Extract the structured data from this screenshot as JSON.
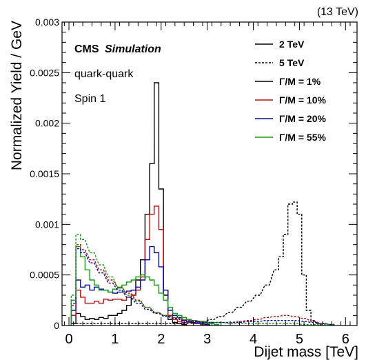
{
  "chart_data": {
    "type": "line",
    "top_right_label": "(13 TeV)",
    "xlabel": "Dijet mass [TeV]",
    "ylabel": "Normalized Yield / GeV",
    "xlim": [
      -0.15,
      6.25
    ],
    "ylim": [
      0,
      0.003
    ],
    "x_ticks": [
      0,
      1,
      2,
      3,
      4,
      5,
      6
    ],
    "x_tick_labels": [
      "0",
      "1",
      "2",
      "3",
      "4",
      "5",
      "6"
    ],
    "y_ticks": [
      0,
      0.0005,
      0.001,
      0.0015,
      0.002,
      0.0025,
      0.003
    ],
    "y_tick_labels": [
      "0",
      "0.0005",
      "0.001",
      "0.0015",
      "0.002",
      "0.0025",
      "0.003"
    ],
    "annotations": [
      "quark-quark",
      "Spin 1"
    ],
    "cms_label": "CMS",
    "cms_sublabel": "Simulation",
    "legend_placement": "top-right",
    "legend": [
      {
        "label": "2 TeV",
        "style": "solid",
        "color": "#000000"
      },
      {
        "label": "5 TeV",
        "style": "dotted",
        "color": "#000000"
      },
      {
        "label": "Γ/M = 1%",
        "style": "solid",
        "color": "#000000"
      },
      {
        "label": "Γ/M = 10%",
        "style": "solid",
        "color": "#dd0000"
      },
      {
        "label": "Γ/M = 20%",
        "style": "solid",
        "color": "#0000dd"
      },
      {
        "label": "Γ/M = 55%",
        "style": "solid",
        "color": "#00aa00"
      }
    ],
    "bin_width": 0.1,
    "series": [
      {
        "mass": "2 TeV",
        "width": "1%",
        "style": "solid",
        "color": "#000000",
        "x": [
          0.1,
          0.2,
          0.3,
          0.4,
          0.5,
          0.6,
          0.7,
          0.8,
          0.9,
          1.0,
          1.1,
          1.2,
          1.3,
          1.4,
          1.5,
          1.6,
          1.7,
          1.8,
          1.9,
          2.0,
          2.1,
          2.2,
          2.3,
          2.4,
          2.5
        ],
        "values": [
          2e-05,
          0.00012,
          9e-05,
          6e-05,
          7e-05,
          6e-05,
          8e-05,
          7e-05,
          0.0001,
          0.0001,
          0.00012,
          0.00015,
          0.0002,
          0.0003,
          0.00045,
          0.00065,
          0.0011,
          0.0016,
          0.0024,
          0.00135,
          0.0003,
          6e-05,
          3e-05,
          2e-05,
          1e-05
        ]
      },
      {
        "mass": "2 TeV",
        "width": "10%",
        "style": "solid",
        "color": "#dd0000",
        "x": [
          0.1,
          0.2,
          0.3,
          0.4,
          0.5,
          0.6,
          0.7,
          0.8,
          0.9,
          1.0,
          1.1,
          1.2,
          1.3,
          1.4,
          1.5,
          1.6,
          1.7,
          1.8,
          1.9,
          2.0,
          2.1,
          2.2,
          2.3,
          2.4,
          2.5,
          2.6,
          2.7,
          2.8,
          2.9,
          3.0
        ],
        "values": [
          0.0001,
          0.00035,
          0.00028,
          0.00022,
          0.00022,
          0.00024,
          0.00022,
          0.00026,
          0.00025,
          0.00026,
          0.00026,
          0.00025,
          0.00028,
          0.0003,
          0.00035,
          0.00048,
          0.00085,
          0.0011,
          0.00118,
          0.00095,
          0.00035,
          0.0001,
          6e-05,
          4e-05,
          3e-05,
          3e-05,
          2e-05,
          2e-05,
          1e-05,
          1e-05
        ]
      },
      {
        "mass": "2 TeV",
        "width": "20%",
        "style": "solid",
        "color": "#0000dd",
        "x": [
          0.1,
          0.2,
          0.3,
          0.4,
          0.5,
          0.6,
          0.7,
          0.8,
          0.9,
          1.0,
          1.1,
          1.2,
          1.3,
          1.4,
          1.5,
          1.6,
          1.7,
          1.8,
          1.9,
          2.0,
          2.1,
          2.2,
          2.3,
          2.4,
          2.5,
          2.6,
          2.7,
          2.8,
          2.9,
          3.0
        ],
        "values": [
          0.00015,
          0.00045,
          0.00038,
          0.0004,
          0.00035,
          0.00038,
          0.00036,
          0.00035,
          0.00033,
          0.00032,
          0.00033,
          0.00033,
          0.00034,
          0.00035,
          0.00038,
          0.00045,
          0.00065,
          0.00078,
          0.00072,
          0.00058,
          0.00035,
          0.00015,
          0.0001,
          8e-05,
          5e-05,
          4e-05,
          3e-05,
          2e-05,
          2e-05,
          1e-05
        ]
      },
      {
        "mass": "2 TeV",
        "width": "55%",
        "style": "solid",
        "color": "#00aa00",
        "x": [
          0.1,
          0.2,
          0.3,
          0.4,
          0.5,
          0.6,
          0.7,
          0.8,
          0.9,
          1.0,
          1.1,
          1.2,
          1.3,
          1.4,
          1.5,
          1.6,
          1.7,
          1.8,
          1.9,
          2.0,
          2.1,
          2.2,
          2.3,
          2.4,
          2.5,
          2.6,
          2.7,
          2.8,
          2.9,
          3.0,
          3.1,
          3.2
        ],
        "values": [
          0.00025,
          0.00078,
          0.00068,
          0.00055,
          0.00045,
          0.0004,
          0.00035,
          0.00035,
          0.00033,
          0.00036,
          0.00037,
          0.0004,
          0.00043,
          0.00045,
          0.00048,
          0.0005,
          0.00048,
          0.00045,
          0.0004,
          0.00032,
          0.00025,
          0.00018,
          0.00012,
          0.0001,
          8e-05,
          6e-05,
          5e-05,
          4e-05,
          3e-05,
          2e-05,
          2e-05,
          1e-05
        ]
      },
      {
        "mass": "5 TeV",
        "width": "1%",
        "style": "dotted",
        "color": "#000000",
        "x": [
          0.1,
          0.3,
          0.5,
          0.7,
          0.9,
          1.1,
          1.3,
          1.5,
          1.7,
          1.9,
          2.1,
          2.3,
          2.5,
          2.7,
          2.9,
          3.1,
          3.3,
          3.5,
          3.7,
          3.9,
          4.1,
          4.3,
          4.5,
          4.6,
          4.7,
          4.8,
          4.9,
          5.0,
          5.1,
          5.2,
          5.3,
          5.4
        ],
        "values": [
          2e-05,
          2e-05,
          2e-05,
          2e-05,
          2e-05,
          2e-05,
          2e-05,
          2e-05,
          2e-05,
          2e-05,
          2e-05,
          2e-05,
          2e-05,
          3e-05,
          4e-05,
          6e-05,
          9e-05,
          0.00013,
          0.00018,
          0.00024,
          0.0003,
          0.0004,
          0.00055,
          0.00068,
          0.0009,
          0.0012,
          0.00122,
          0.0011,
          0.0005,
          0.00015,
          5e-05,
          2e-05
        ]
      },
      {
        "mass": "5 TeV",
        "width": "10%",
        "style": "dotted",
        "color": "#dd0000",
        "x": [
          0.1,
          0.2,
          0.3,
          0.5,
          0.7,
          0.9,
          1.1,
          1.3,
          1.5,
          1.7,
          1.9,
          2.1,
          2.3,
          2.5,
          2.7,
          2.9,
          3.1,
          3.3,
          3.5,
          3.7,
          3.9,
          4.1,
          4.3,
          4.5,
          4.7,
          4.9,
          5.1,
          5.3,
          5.5,
          5.7
        ],
        "values": [
          0.0002,
          0.0008,
          0.00075,
          0.00065,
          0.00055,
          0.00045,
          0.00038,
          0.00032,
          0.00025,
          0.00018,
          0.00013,
          0.0001,
          8e-05,
          6e-05,
          5e-05,
          4e-05,
          3e-05,
          3e-05,
          3e-05,
          4e-05,
          5e-05,
          6e-05,
          8e-05,
          9e-05,
          0.0001,
          9e-05,
          7e-05,
          4e-05,
          2e-05,
          1e-05
        ]
      },
      {
        "mass": "5 TeV",
        "width": "20%",
        "style": "dotted",
        "color": "#0000dd",
        "x": [
          0.1,
          0.2,
          0.3,
          0.5,
          0.7,
          0.9,
          1.1,
          1.3,
          1.5,
          1.7,
          1.9,
          2.1,
          2.3,
          2.5,
          2.7,
          2.9,
          3.1,
          3.3,
          3.5,
          3.7,
          3.9,
          4.1,
          4.3,
          4.5,
          4.7,
          4.9,
          5.1,
          5.3,
          5.5,
          5.7
        ],
        "values": [
          0.00022,
          0.00076,
          0.00072,
          0.00062,
          0.00052,
          0.00042,
          0.00035,
          0.00028,
          0.00022,
          0.00016,
          0.00012,
          9e-05,
          7e-05,
          5e-05,
          4e-05,
          3e-05,
          3e-05,
          3e-05,
          3e-05,
          3e-05,
          4e-05,
          4e-05,
          5e-05,
          5e-05,
          5e-05,
          5e-05,
          4e-05,
          3e-05,
          2e-05,
          1e-05
        ]
      },
      {
        "mass": "5 TeV",
        "width": "55%",
        "style": "dotted",
        "color": "#00aa00",
        "x": [
          0.1,
          0.2,
          0.3,
          0.5,
          0.7,
          0.9,
          1.1,
          1.3,
          1.5,
          1.7,
          1.9,
          2.1,
          2.3,
          2.5,
          2.7,
          2.9,
          3.1,
          3.3,
          3.5,
          3.7,
          3.9,
          4.1,
          4.3,
          4.5,
          4.7,
          4.9,
          5.1,
          5.3,
          5.5,
          5.7
        ],
        "values": [
          0.0003,
          0.0009,
          0.00085,
          0.00072,
          0.0006,
          0.00048,
          0.00038,
          0.0003,
          0.00024,
          0.00018,
          0.00013,
          0.0001,
          8e-05,
          6e-05,
          5e-05,
          4e-05,
          3e-05,
          3e-05,
          2e-05,
          2e-05,
          2e-05,
          2e-05,
          2e-05,
          2e-05,
          2e-05,
          2e-05,
          1e-05,
          1e-05,
          1e-05,
          1e-05
        ]
      }
    ]
  }
}
